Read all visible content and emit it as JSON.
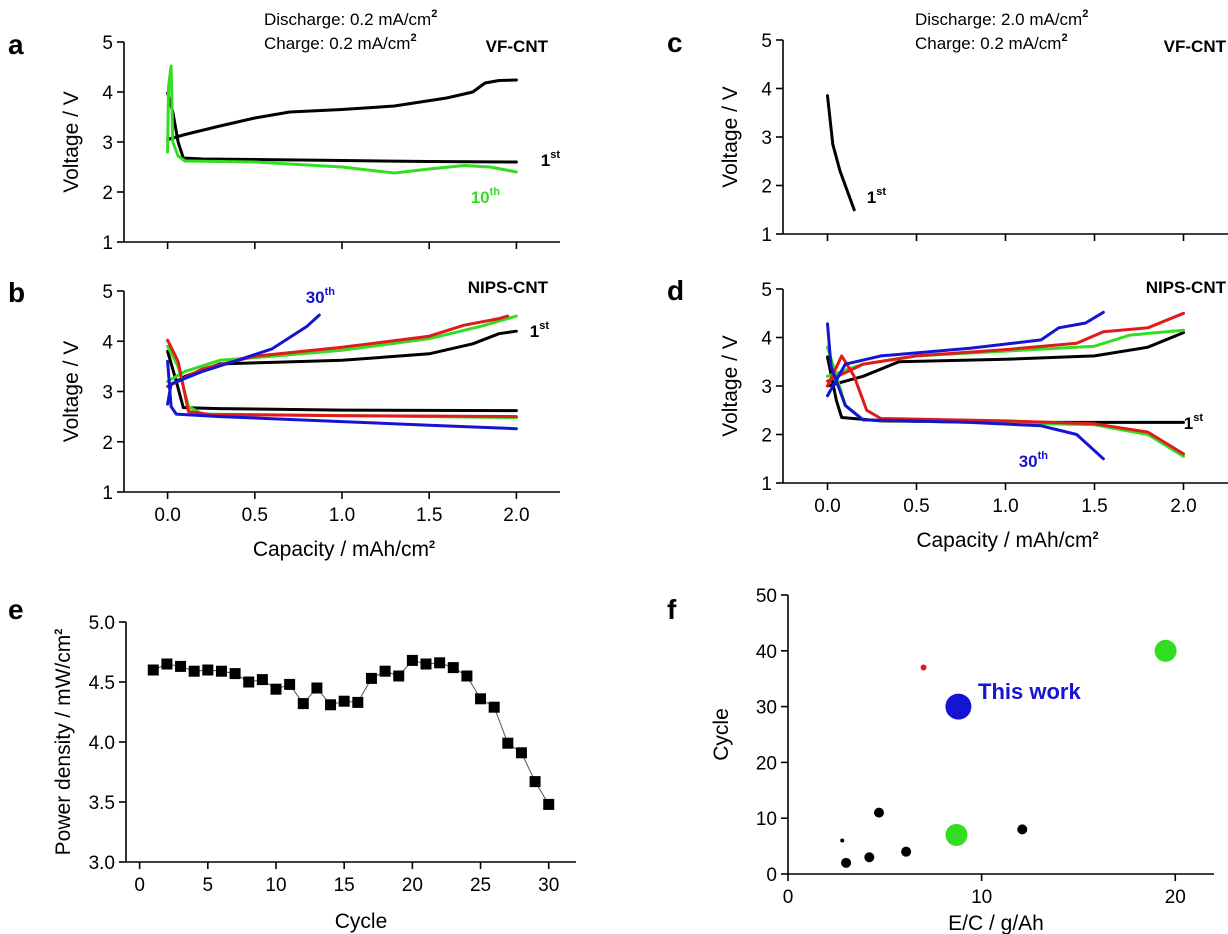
{
  "colors": {
    "black": "#000000",
    "green": "#33dd22",
    "red": "#e01b1b",
    "blue": "#1414d2"
  },
  "chart_data": [
    {
      "panel": "a",
      "type": "line",
      "sample": "VF-CNT",
      "condition": {
        "discharge": "Discharge: 0.2 mA/cm",
        "charge": "Charge: 0.2 mA/cm",
        "unit_exp": "2"
      },
      "ylabel": "Voltage / V",
      "xlabel": "",
      "xlim": [
        -0.25,
        2.25
      ],
      "ylim": [
        1,
        5
      ],
      "xticks": [
        0.0,
        0.5,
        1.0,
        1.5,
        2.0
      ],
      "yticks": [
        1,
        2,
        3,
        4,
        5
      ],
      "show_xtick_labels": false,
      "series": [
        {
          "label_num": "1",
          "label_sup": "st",
          "color": "black",
          "discharge": [
            [
              0.0,
              3.98
            ],
            [
              0.03,
              3.6
            ],
            [
              0.06,
              3.0
            ],
            [
              0.09,
              2.68
            ],
            [
              0.2,
              2.66
            ],
            [
              0.5,
              2.65
            ],
            [
              1.0,
              2.63
            ],
            [
              1.5,
              2.61
            ],
            [
              2.0,
              2.6
            ]
          ],
          "charge": [
            [
              0.0,
              3.05
            ],
            [
              0.1,
              3.15
            ],
            [
              0.3,
              3.32
            ],
            [
              0.5,
              3.48
            ],
            [
              0.7,
              3.6
            ],
            [
              1.0,
              3.65
            ],
            [
              1.3,
              3.72
            ],
            [
              1.6,
              3.88
            ],
            [
              1.75,
              4.0
            ],
            [
              1.82,
              4.18
            ],
            [
              1.9,
              4.23
            ],
            [
              2.0,
              4.24
            ]
          ]
        },
        {
          "label_num": "10",
          "label_sup": "th",
          "color": "green",
          "discharge": [
            [
              0.0,
              2.8
            ],
            [
              0.005,
              4.1
            ],
            [
              0.02,
              4.52
            ],
            [
              0.03,
              3.0
            ],
            [
              0.06,
              2.72
            ],
            [
              0.1,
              2.62
            ],
            [
              0.5,
              2.6
            ],
            [
              1.0,
              2.5
            ],
            [
              1.3,
              2.38
            ],
            [
              1.5,
              2.46
            ],
            [
              1.7,
              2.53
            ],
            [
              1.85,
              2.5
            ],
            [
              2.0,
              2.4
            ]
          ],
          "charge": []
        }
      ]
    },
    {
      "panel": "b",
      "type": "line",
      "sample": "NIPS-CNT",
      "ylabel": "Voltage / V",
      "xlabel": "Capacity / mAh/cm",
      "xlabel_exp": "2",
      "xlim": [
        -0.25,
        2.25
      ],
      "ylim": [
        1,
        5
      ],
      "xticks": [
        0.0,
        0.5,
        1.0,
        1.5,
        2.0
      ],
      "yticks": [
        1,
        2,
        3,
        4,
        5
      ],
      "show_xtick_labels": true,
      "series": [
        {
          "label_num": "1",
          "label_sup": "st",
          "color": "black",
          "discharge": [
            [
              0.0,
              3.8
            ],
            [
              0.05,
              3.2
            ],
            [
              0.09,
              2.68
            ],
            [
              0.3,
              2.66
            ],
            [
              1.0,
              2.63
            ],
            [
              2.0,
              2.62
            ]
          ],
          "charge": [
            [
              0.0,
              3.1
            ],
            [
              0.1,
              3.3
            ],
            [
              0.3,
              3.55
            ],
            [
              0.6,
              3.58
            ],
            [
              1.0,
              3.62
            ],
            [
              1.5,
              3.75
            ],
            [
              1.75,
              3.95
            ],
            [
              1.9,
              4.15
            ],
            [
              2.0,
              4.2
            ]
          ]
        },
        {
          "label_num": "",
          "label_sup": "",
          "color": "green",
          "discharge": [
            [
              0.0,
              3.9
            ],
            [
              0.06,
              3.5
            ],
            [
              0.12,
              2.7
            ],
            [
              0.2,
              2.55
            ],
            [
              1.0,
              2.52
            ],
            [
              2.0,
              2.48
            ]
          ],
          "charge": [
            [
              0.0,
              3.2
            ],
            [
              0.1,
              3.4
            ],
            [
              0.3,
              3.62
            ],
            [
              0.6,
              3.7
            ],
            [
              1.0,
              3.82
            ],
            [
              1.5,
              4.05
            ],
            [
              1.8,
              4.3
            ],
            [
              2.0,
              4.5
            ]
          ]
        },
        {
          "label_num": "",
          "label_sup": "",
          "color": "red",
          "discharge": [
            [
              0.0,
              4.02
            ],
            [
              0.06,
              3.6
            ],
            [
              0.12,
              2.6
            ],
            [
              0.25,
              2.54
            ],
            [
              1.0,
              2.52
            ],
            [
              2.0,
              2.5
            ]
          ],
          "charge": [
            [
              0.0,
              3.1
            ],
            [
              0.2,
              3.45
            ],
            [
              0.5,
              3.7
            ],
            [
              1.0,
              3.88
            ],
            [
              1.5,
              4.1
            ],
            [
              1.7,
              4.32
            ],
            [
              1.9,
              4.45
            ],
            [
              1.95,
              4.5
            ]
          ]
        },
        {
          "label_num": "30",
          "label_sup": "th",
          "color": "blue",
          "discharge": [
            [
              0.0,
              3.6
            ],
            [
              0.02,
              2.7
            ],
            [
              0.05,
              2.55
            ],
            [
              0.3,
              2.5
            ],
            [
              1.0,
              2.4
            ],
            [
              1.5,
              2.33
            ],
            [
              2.0,
              2.26
            ]
          ],
          "charge": [
            [
              0.0,
              2.75
            ],
            [
              0.02,
              3.15
            ],
            [
              0.2,
              3.4
            ],
            [
              0.4,
              3.62
            ],
            [
              0.6,
              3.85
            ],
            [
              0.8,
              4.3
            ],
            [
              0.87,
              4.52
            ]
          ]
        }
      ]
    },
    {
      "panel": "c",
      "type": "line",
      "sample": "VF-CNT",
      "condition": {
        "discharge": "Discharge: 2.0 mA/cm",
        "charge": "Charge: 0.2 mA/cm",
        "unit_exp": "2"
      },
      "ylabel": "Voltage / V",
      "xlabel": "",
      "xlim": [
        -0.25,
        2.25
      ],
      "ylim": [
        1,
        5
      ],
      "xticks": [
        0.0,
        0.5,
        1.0,
        1.5,
        2.0
      ],
      "yticks": [
        1,
        2,
        3,
        4,
        5
      ],
      "show_xtick_labels": false,
      "series": [
        {
          "label_num": "1",
          "label_sup": "st",
          "color": "black",
          "discharge": [
            [
              0.0,
              3.85
            ],
            [
              0.03,
              2.85
            ],
            [
              0.07,
              2.3
            ],
            [
              0.1,
              2.0
            ],
            [
              0.15,
              1.5
            ]
          ],
          "charge": []
        }
      ]
    },
    {
      "panel": "d",
      "type": "line",
      "sample": "NIPS-CNT",
      "ylabel": "Voltage / V",
      "xlabel": "Capacity / mAh/cm",
      "xlabel_exp": "2",
      "xlim": [
        -0.25,
        2.25
      ],
      "ylim": [
        1,
        5
      ],
      "xticks": [
        0.0,
        0.5,
        1.0,
        1.5,
        2.0
      ],
      "yticks": [
        1,
        2,
        3,
        4,
        5
      ],
      "show_xtick_labels": true,
      "series": [
        {
          "label_num": "1",
          "label_sup": "st",
          "color": "black",
          "discharge": [
            [
              0.0,
              3.6
            ],
            [
              0.05,
              2.7
            ],
            [
              0.08,
              2.35
            ],
            [
              0.3,
              2.28
            ],
            [
              1.0,
              2.25
            ],
            [
              2.0,
              2.25
            ]
          ],
          "charge": [
            [
              0.0,
              3.0
            ],
            [
              0.2,
              3.2
            ],
            [
              0.4,
              3.5
            ],
            [
              1.0,
              3.55
            ],
            [
              1.5,
              3.62
            ],
            [
              1.8,
              3.8
            ],
            [
              2.0,
              4.1
            ]
          ]
        },
        {
          "label_num": "",
          "label_sup": "",
          "color": "green",
          "discharge": [
            [
              0.0,
              3.8
            ],
            [
              0.1,
              2.6
            ],
            [
              0.2,
              2.3
            ],
            [
              1.0,
              2.24
            ],
            [
              1.5,
              2.2
            ],
            [
              1.8,
              2.0
            ],
            [
              2.0,
              1.55
            ]
          ],
          "charge": [
            [
              0.0,
              3.2
            ],
            [
              0.2,
              3.45
            ],
            [
              0.5,
              3.62
            ],
            [
              1.0,
              3.72
            ],
            [
              1.5,
              3.82
            ],
            [
              1.7,
              4.05
            ],
            [
              2.0,
              4.15
            ]
          ]
        },
        {
          "label_num": "",
          "label_sup": "",
          "color": "red",
          "discharge": [
            [
              0.0,
              3.0
            ],
            [
              0.08,
              3.62
            ],
            [
              0.15,
              3.2
            ],
            [
              0.22,
              2.5
            ],
            [
              0.3,
              2.33
            ],
            [
              1.0,
              2.28
            ],
            [
              1.5,
              2.22
            ],
            [
              1.8,
              2.05
            ],
            [
              2.0,
              1.6
            ]
          ],
          "charge": [
            [
              0.0,
              3.1
            ],
            [
              0.2,
              3.45
            ],
            [
              0.5,
              3.62
            ],
            [
              1.0,
              3.75
            ],
            [
              1.4,
              3.88
            ],
            [
              1.55,
              4.12
            ],
            [
              1.8,
              4.2
            ],
            [
              2.0,
              4.5
            ]
          ]
        },
        {
          "label_num": "30",
          "label_sup": "th",
          "color": "blue",
          "discharge": [
            [
              0.0,
              4.28
            ],
            [
              0.02,
              3.4
            ],
            [
              0.1,
              2.6
            ],
            [
              0.2,
              2.3
            ],
            [
              0.8,
              2.25
            ],
            [
              1.2,
              2.18
            ],
            [
              1.4,
              2.0
            ],
            [
              1.55,
              1.5
            ]
          ],
          "charge": [
            [
              0.0,
              2.8
            ],
            [
              0.1,
              3.45
            ],
            [
              0.3,
              3.62
            ],
            [
              0.8,
              3.78
            ],
            [
              1.2,
              3.95
            ],
            [
              1.3,
              4.2
            ],
            [
              1.45,
              4.3
            ],
            [
              1.55,
              4.52
            ]
          ]
        }
      ]
    },
    {
      "panel": "e",
      "type": "line",
      "ylabel": "Power density / mW/cm",
      "ylabel_exp": "2",
      "xlabel": "Cycle",
      "xlim": [
        -1,
        32
      ],
      "ylim": [
        3.0,
        5.0
      ],
      "xticks": [
        0,
        5,
        10,
        15,
        20,
        25,
        30
      ],
      "yticks": [
        3.0,
        3.5,
        4.0,
        4.5,
        5.0
      ],
      "marker": "square",
      "x": [
        1,
        2,
        3,
        4,
        5,
        6,
        7,
        8,
        9,
        10,
        11,
        12,
        13,
        14,
        15,
        16,
        17,
        18,
        19,
        20,
        21,
        22,
        23,
        24,
        25,
        26,
        27,
        28,
        29,
        30
      ],
      "values": [
        4.6,
        4.65,
        4.63,
        4.59,
        4.6,
        4.59,
        4.57,
        4.5,
        4.52,
        4.44,
        4.48,
        4.32,
        4.45,
        4.31,
        4.34,
        4.33,
        4.53,
        4.59,
        4.55,
        4.68,
        4.65,
        4.66,
        4.62,
        4.55,
        4.36,
        4.29,
        3.99,
        3.91,
        3.67,
        3.48
      ]
    },
    {
      "panel": "f",
      "type": "scatter",
      "ylabel": "Cycle",
      "xlabel": "E/C / g/Ah",
      "xlim": [
        0,
        22
      ],
      "ylim": [
        0,
        50
      ],
      "xticks": [
        0,
        10,
        20
      ],
      "yticks": [
        0,
        10,
        20,
        30,
        40,
        50
      ],
      "annotation": "This work",
      "points": [
        {
          "x": 2.8,
          "y": 6,
          "r": 2,
          "color": "black"
        },
        {
          "x": 3.0,
          "y": 2,
          "r": 5,
          "color": "black"
        },
        {
          "x": 4.2,
          "y": 3,
          "r": 5,
          "color": "black"
        },
        {
          "x": 4.7,
          "y": 11,
          "r": 5,
          "color": "black"
        },
        {
          "x": 6.1,
          "y": 4,
          "r": 5,
          "color": "black"
        },
        {
          "x": 12.1,
          "y": 8,
          "r": 5,
          "color": "black"
        },
        {
          "x": 7.0,
          "y": 37,
          "r": 3,
          "color": "red"
        },
        {
          "x": 8.7,
          "y": 7,
          "r": 11,
          "color": "green"
        },
        {
          "x": 19.5,
          "y": 40,
          "r": 11,
          "color": "green"
        },
        {
          "x": 8.8,
          "y": 30,
          "r": 13,
          "color": "blue"
        }
      ]
    }
  ]
}
